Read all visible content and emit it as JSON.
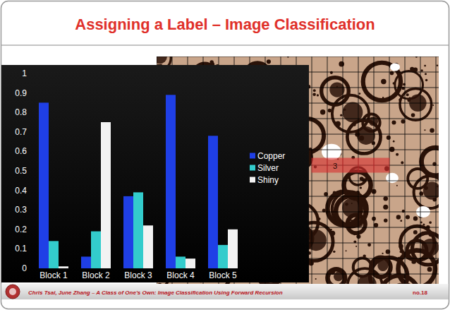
{
  "slide": {
    "title": "Assigning a Label – Image Classification",
    "footer": "Chris Tsai, June Zhang – A Class of One's Own: Image Classification Using Forward Recursion",
    "page": "no.18"
  },
  "image": {
    "highlight_label": "3"
  },
  "chart_data": {
    "type": "bar",
    "categories": [
      "Block 1",
      "Block 2",
      "Block 3",
      "Block 4",
      "Block 5"
    ],
    "series": [
      {
        "name": "Copper",
        "color": "#1f3fe6",
        "values": [
          0.85,
          0.06,
          0.37,
          0.89,
          0.68
        ]
      },
      {
        "name": "Silver",
        "color": "#33cccc",
        "values": [
          0.14,
          0.19,
          0.39,
          0.06,
          0.12
        ]
      },
      {
        "name": "Shiny",
        "color": "#f2f2f2",
        "values": [
          0.01,
          0.75,
          0.22,
          0.05,
          0.2
        ]
      }
    ],
    "ylim": [
      0,
      1
    ],
    "yticks": [
      0,
      0.1,
      0.2,
      0.3,
      0.4,
      0.5,
      0.6,
      0.7,
      0.8,
      0.9,
      1
    ],
    "grid": false,
    "legend": "right"
  }
}
